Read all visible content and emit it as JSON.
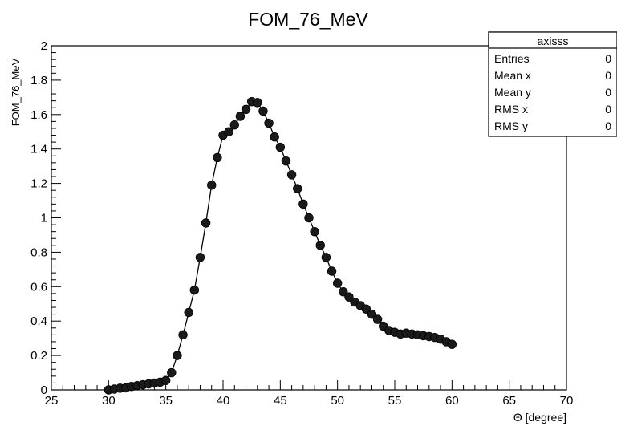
{
  "chart_data": {
    "type": "scatter",
    "title": "FOM_76_MeV",
    "xlabel": "Θ [degree]",
    "ylabel": "FOM_76_MeV",
    "xlim": [
      25,
      70
    ],
    "ylim": [
      0,
      2
    ],
    "x_ticks": [
      "25",
      "30",
      "35",
      "40",
      "45",
      "50",
      "55",
      "60",
      "65",
      "70"
    ],
    "y_ticks": [
      "0",
      "0.2",
      "0.4",
      "0.6",
      "0.8",
      "1",
      "1.2",
      "1.4",
      "1.6",
      "1.8",
      "2"
    ],
    "grid": false,
    "connect_points": true,
    "marker_color": "#1a1a1a",
    "line_color": "#000000",
    "points": [
      [
        30.0,
        0.0
      ],
      [
        30.5,
        0.005
      ],
      [
        31.0,
        0.01
      ],
      [
        31.5,
        0.012
      ],
      [
        32.0,
        0.02
      ],
      [
        32.5,
        0.025
      ],
      [
        33.0,
        0.03
      ],
      [
        33.5,
        0.035
      ],
      [
        34.0,
        0.04
      ],
      [
        34.5,
        0.045
      ],
      [
        35.0,
        0.055
      ],
      [
        35.5,
        0.1
      ],
      [
        36.0,
        0.2
      ],
      [
        36.5,
        0.32
      ],
      [
        37.0,
        0.45
      ],
      [
        37.5,
        0.58
      ],
      [
        38.0,
        0.77
      ],
      [
        38.5,
        0.97
      ],
      [
        39.0,
        1.19
      ],
      [
        39.5,
        1.35
      ],
      [
        40.0,
        1.48
      ],
      [
        40.5,
        1.5
      ],
      [
        41.0,
        1.54
      ],
      [
        41.5,
        1.59
      ],
      [
        42.0,
        1.63
      ],
      [
        42.5,
        1.675
      ],
      [
        43.0,
        1.67
      ],
      [
        43.5,
        1.62
      ],
      [
        44.0,
        1.55
      ],
      [
        44.5,
        1.47
      ],
      [
        45.0,
        1.41
      ],
      [
        45.5,
        1.33
      ],
      [
        46.0,
        1.25
      ],
      [
        46.5,
        1.17
      ],
      [
        47.0,
        1.08
      ],
      [
        47.5,
        1.0
      ],
      [
        48.0,
        0.92
      ],
      [
        48.5,
        0.84
      ],
      [
        49.0,
        0.77
      ],
      [
        49.5,
        0.69
      ],
      [
        50.0,
        0.62
      ],
      [
        50.5,
        0.57
      ],
      [
        51.0,
        0.54
      ],
      [
        51.5,
        0.51
      ],
      [
        52.0,
        0.49
      ],
      [
        52.5,
        0.47
      ],
      [
        53.0,
        0.44
      ],
      [
        53.5,
        0.41
      ],
      [
        54.0,
        0.37
      ],
      [
        54.5,
        0.345
      ],
      [
        55.0,
        0.335
      ],
      [
        55.5,
        0.325
      ],
      [
        56.0,
        0.33
      ],
      [
        56.5,
        0.325
      ],
      [
        57.0,
        0.32
      ],
      [
        57.5,
        0.315
      ],
      [
        58.0,
        0.31
      ],
      [
        58.5,
        0.305
      ],
      [
        59.0,
        0.295
      ],
      [
        59.5,
        0.28
      ],
      [
        60.0,
        0.265
      ]
    ]
  },
  "stats_box": {
    "title": "axisss",
    "rows": [
      {
        "label": "Entries",
        "value": "0"
      },
      {
        "label": "Mean x",
        "value": "0"
      },
      {
        "label": "Mean y",
        "value": "0"
      },
      {
        "label": "RMS x",
        "value": "0"
      },
      {
        "label": "RMS y",
        "value": "0"
      }
    ]
  }
}
